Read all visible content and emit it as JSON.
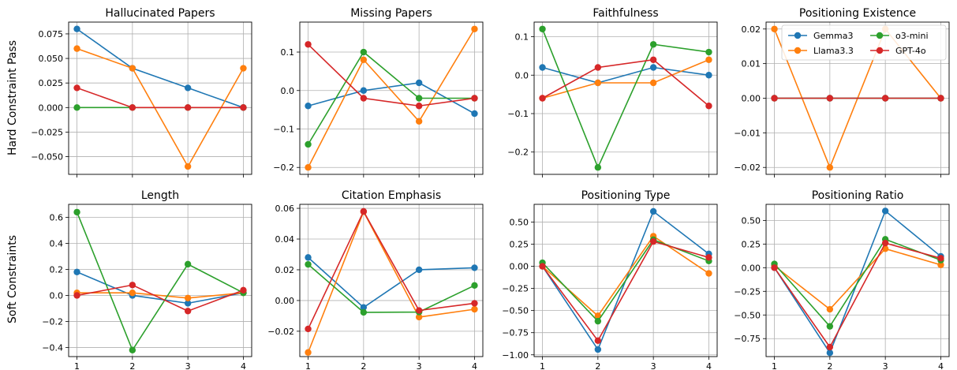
{
  "row_labels": [
    "Hard Constraint Pass",
    "Soft Constraints"
  ],
  "colors": {
    "Gemma3": "#1f77b4",
    "Llama3.3": "#ff7f0e",
    "o3-mini": "#2ca02c",
    "GPT-4o": "#d62728"
  },
  "legend": {
    "placement": "top-right of Positioning Existence panel",
    "entries": [
      "Gemma3",
      "Llama3.3",
      "o3-mini",
      "GPT-4o"
    ]
  },
  "chart_data": [
    {
      "type": "line",
      "title": "Hallucinated Papers",
      "x": [
        1,
        2,
        3,
        4
      ],
      "grid": true,
      "ylim": [
        -0.068,
        0.087
      ],
      "yticks": [
        -0.05,
        -0.025,
        0.0,
        0.025,
        0.05,
        0.075
      ],
      "ytick_labels": [
        "−0.050",
        "−0.025",
        "0.000",
        "0.025",
        "0.050",
        "0.075"
      ],
      "series": [
        {
          "name": "Gemma3",
          "values": [
            0.08,
            0.04,
            0.02,
            0.0
          ]
        },
        {
          "name": "Llama3.3",
          "values": [
            0.06,
            0.04,
            -0.06,
            0.04
          ]
        },
        {
          "name": "o3-mini",
          "values": [
            0.0,
            0.0,
            0.0,
            0.0
          ]
        },
        {
          "name": "GPT-4o",
          "values": [
            0.02,
            0.0,
            0.0,
            0.0
          ]
        }
      ]
    },
    {
      "type": "line",
      "title": "Missing Papers",
      "x": [
        1,
        2,
        3,
        4
      ],
      "grid": true,
      "ylim": [
        -0.218,
        0.178
      ],
      "yticks": [
        -0.2,
        -0.1,
        0.0,
        0.1
      ],
      "ytick_labels": [
        "−0.2",
        "−0.1",
        "0.0",
        "0.1"
      ],
      "series": [
        {
          "name": "Gemma3",
          "values": [
            -0.04,
            0.0,
            0.02,
            -0.06
          ]
        },
        {
          "name": "Llama3.3",
          "values": [
            -0.2,
            0.08,
            -0.08,
            0.16
          ]
        },
        {
          "name": "o3-mini",
          "values": [
            -0.14,
            0.1,
            -0.02,
            -0.02
          ]
        },
        {
          "name": "GPT-4o",
          "values": [
            0.12,
            -0.02,
            -0.04,
            -0.02
          ]
        }
      ]
    },
    {
      "type": "line",
      "title": "Faithfulness",
      "x": [
        1,
        2,
        3,
        4
      ],
      "grid": true,
      "ylim": [
        -0.258,
        0.138
      ],
      "yticks": [
        -0.2,
        -0.1,
        0.0,
        0.1
      ],
      "ytick_labels": [
        "−0.2",
        "−0.1",
        "0.0",
        "0.1"
      ],
      "series": [
        {
          "name": "Gemma3",
          "values": [
            0.02,
            -0.02,
            0.02,
            0.0
          ]
        },
        {
          "name": "Llama3.3",
          "values": [
            -0.06,
            -0.02,
            -0.02,
            0.04
          ]
        },
        {
          "name": "o3-mini",
          "values": [
            0.12,
            -0.24,
            0.08,
            0.06
          ]
        },
        {
          "name": "GPT-4o",
          "values": [
            -0.06,
            0.02,
            0.04,
            -0.08
          ]
        }
      ]
    },
    {
      "type": "line",
      "title": "Positioning Existence",
      "x": [
        1,
        2,
        3,
        4
      ],
      "grid": true,
      "ylim": [
        -0.022,
        0.022
      ],
      "yticks": [
        -0.02,
        -0.01,
        0.0,
        0.01,
        0.02
      ],
      "ytick_labels": [
        "−0.02",
        "−0.01",
        "0.00",
        "0.01",
        "0.02"
      ],
      "series": [
        {
          "name": "Gemma3",
          "values": [
            0.0,
            0.0,
            0.0,
            0.0
          ]
        },
        {
          "name": "Llama3.3",
          "values": [
            0.02,
            -0.02,
            0.02,
            0.0
          ]
        },
        {
          "name": "o3-mini",
          "values": [
            0.0,
            0.0,
            0.0,
            0.0
          ]
        },
        {
          "name": "GPT-4o",
          "values": [
            0.0,
            0.0,
            0.0,
            0.0
          ]
        }
      ]
    },
    {
      "type": "line",
      "title": "Length",
      "x": [
        1,
        2,
        3,
        4
      ],
      "grid": true,
      "ylim": [
        -0.47,
        0.7
      ],
      "yticks": [
        -0.4,
        -0.2,
        0.0,
        0.2,
        0.4,
        0.6
      ],
      "ytick_labels": [
        "−0.4",
        "−0.2",
        "0.0",
        "0.2",
        "0.4",
        "0.6"
      ],
      "series": [
        {
          "name": "Gemma3",
          "values": [
            0.18,
            0.0,
            -0.06,
            0.02
          ]
        },
        {
          "name": "Llama3.3",
          "values": [
            0.02,
            0.02,
            -0.02,
            0.02
          ]
        },
        {
          "name": "o3-mini",
          "values": [
            0.64,
            -0.42,
            0.24,
            0.02
          ]
        },
        {
          "name": "GPT-4o",
          "values": [
            0.0,
            0.08,
            -0.12,
            0.04
          ]
        }
      ]
    },
    {
      "type": "line",
      "title": "Citation Emphasis",
      "x": [
        1,
        2,
        3,
        4
      ],
      "grid": true,
      "ylim": [
        -0.0365,
        0.0626
      ],
      "yticks": [
        -0.02,
        0.0,
        0.02,
        0.04,
        0.06
      ],
      "ytick_labels": [
        "−0.02",
        "0.00",
        "0.02",
        "0.04",
        "0.06"
      ],
      "series": [
        {
          "name": "Gemma3",
          "values": [
            0.028,
            -0.0045,
            0.02,
            0.0213
          ]
        },
        {
          "name": "Llama3.3",
          "values": [
            -0.0338,
            0.0578,
            -0.0108,
            -0.0057
          ]
        },
        {
          "name": "o3-mini",
          "values": [
            0.0235,
            -0.0077,
            -0.0075,
            0.0098
          ]
        },
        {
          "name": "GPT-4o",
          "values": [
            -0.0185,
            0.058,
            -0.0065,
            -0.0018
          ]
        }
      ]
    },
    {
      "type": "line",
      "title": "Positioning Type",
      "x": [
        1,
        2,
        3,
        4
      ],
      "grid": true,
      "ylim": [
        -1.02,
        0.7
      ],
      "yticks": [
        -1.0,
        -0.75,
        -0.5,
        -0.25,
        0.0,
        0.25,
        0.5
      ],
      "ytick_labels": [
        "−1.00",
        "−0.75",
        "−0.50",
        "−0.25",
        "0.00",
        "0.25",
        "0.50"
      ],
      "series": [
        {
          "name": "Gemma3",
          "values": [
            0.0,
            -0.94,
            0.62,
            0.14
          ]
        },
        {
          "name": "Llama3.3",
          "values": [
            0.0,
            -0.56,
            0.34,
            -0.08
          ]
        },
        {
          "name": "o3-mini",
          "values": [
            0.04,
            -0.62,
            0.3,
            0.06
          ]
        },
        {
          "name": "GPT-4o",
          "values": [
            0.0,
            -0.84,
            0.28,
            0.1
          ]
        }
      ]
    },
    {
      "type": "line",
      "title": "Positioning Ratio",
      "x": [
        1,
        2,
        3,
        4
      ],
      "grid": true,
      "ylim": [
        -0.94,
        0.67
      ],
      "yticks": [
        -0.75,
        -0.5,
        -0.25,
        0.0,
        0.25,
        0.5
      ],
      "ytick_labels": [
        "−0.75",
        "−0.50",
        "−0.25",
        "0.00",
        "0.25",
        "0.50"
      ],
      "series": [
        {
          "name": "Gemma3",
          "values": [
            0.0,
            -0.9,
            0.6,
            0.12
          ]
        },
        {
          "name": "Llama3.3",
          "values": [
            0.02,
            -0.44,
            0.2,
            0.03
          ]
        },
        {
          "name": "o3-mini",
          "values": [
            0.04,
            -0.62,
            0.3,
            0.08
          ]
        },
        {
          "name": "GPT-4o",
          "values": [
            0.0,
            -0.84,
            0.26,
            0.1
          ]
        }
      ]
    }
  ]
}
